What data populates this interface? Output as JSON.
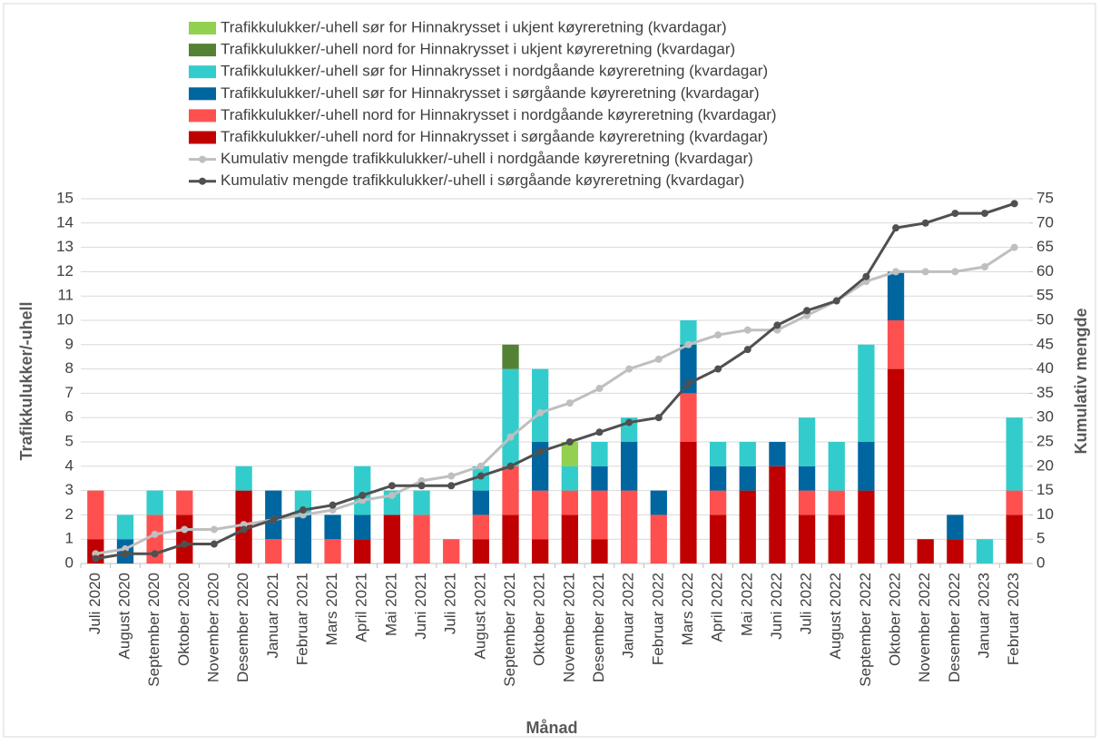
{
  "chart_data": {
    "type": "bar",
    "stacked": true,
    "x_label": "Månad",
    "y_label": "Trafikkulukker/-uhell",
    "y2_label": "Kumulativ mengde",
    "grid": true,
    "categories": [
      "Juli 2020",
      "August 2020",
      "September 2020",
      "Oktober 2020",
      "November 2020",
      "Desember 2020",
      "Januar 2021",
      "Februar 2021",
      "Mars 2021",
      "April 2021",
      "Mai 2021",
      "Juni 2021",
      "Juli 2021",
      "August 2021",
      "September 2021",
      "Oktober 2021",
      "November 2021",
      "Desember 2021",
      "Januar 2022",
      "Februar 2022",
      "Mars 2022",
      "April 2022",
      "Mai 2022",
      "Juni 2022",
      "Juli 2022",
      "August 2022",
      "September 2022",
      "Oktober 2022",
      "November 2022",
      "Desember 2022",
      "Januar 2023",
      "Februar 2023"
    ],
    "ylim": [
      0,
      15
    ],
    "yticks": [
      0,
      1,
      2,
      3,
      4,
      5,
      6,
      7,
      8,
      9,
      10,
      11,
      12,
      13,
      14,
      15
    ],
    "y2lim": [
      0,
      75
    ],
    "y2ticks": [
      0,
      5,
      10,
      15,
      20,
      25,
      30,
      35,
      40,
      45,
      50,
      55,
      60,
      65,
      70,
      75
    ],
    "series": [
      {
        "name": "Trafikkulukker/-uhell nord for Hinnakrysset i sørgåande køyreretning (kvardagar)",
        "color": "#c00000",
        "type": "bar",
        "values": [
          1,
          0,
          0,
          2,
          0,
          3,
          0,
          0,
          0,
          1,
          2,
          0,
          0,
          1,
          2,
          1,
          2,
          1,
          0,
          0,
          5,
          2,
          3,
          4,
          2,
          2,
          3,
          8,
          1,
          1,
          0,
          2
        ]
      },
      {
        "name": "Trafikkulukker/-uhell nord for Hinnakrysset i nordgåande køyreretning (kvardagar)",
        "color": "#ff5050",
        "type": "bar",
        "values": [
          2,
          0,
          2,
          1,
          0,
          0,
          1,
          0,
          1,
          0,
          0,
          2,
          1,
          1,
          2,
          2,
          1,
          2,
          3,
          2,
          2,
          1,
          0,
          0,
          1,
          1,
          0,
          2,
          0,
          0,
          0,
          1
        ]
      },
      {
        "name": "Trafikkulukker/-uhell sør for Hinnakrysset i sørgåande køyreretning (kvardagar)",
        "color": "#0066a0",
        "type": "bar",
        "values": [
          0,
          1,
          0,
          0,
          0,
          0,
          2,
          2,
          1,
          1,
          0,
          0,
          0,
          1,
          0,
          2,
          0,
          1,
          2,
          1,
          2,
          1,
          1,
          1,
          1,
          0,
          2,
          2,
          0,
          1,
          0,
          0
        ]
      },
      {
        "name": "Trafikkulukker/-uhell sør for Hinnakrysset i nordgåande køyreretning (kvardagar)",
        "color": "#33cccc",
        "type": "bar",
        "values": [
          0,
          1,
          1,
          0,
          0,
          1,
          0,
          1,
          0,
          2,
          1,
          1,
          0,
          1,
          4,
          3,
          1,
          1,
          1,
          0,
          1,
          1,
          1,
          0,
          2,
          2,
          4,
          0,
          0,
          0,
          1,
          3
        ]
      },
      {
        "name": "Trafikkulukker/-uhell nord for Hinnakrysset i ukjent køyreretning (kvardagar)",
        "color": "#548235",
        "type": "bar",
        "values": [
          0,
          0,
          0,
          0,
          0,
          0,
          0,
          0,
          0,
          0,
          0,
          0,
          0,
          0,
          1,
          0,
          0,
          0,
          0,
          0,
          0,
          0,
          0,
          0,
          0,
          0,
          0,
          0,
          0,
          0,
          0,
          0
        ]
      },
      {
        "name": "Trafikkulukker/-uhell sør for Hinnakrysset i ukjent køyreretning (kvardagar)",
        "color": "#92d050",
        "type": "bar",
        "values": [
          0,
          0,
          0,
          0,
          0,
          0,
          0,
          0,
          0,
          0,
          0,
          0,
          0,
          0,
          0,
          0,
          1,
          0,
          0,
          0,
          0,
          0,
          0,
          0,
          0,
          0,
          0,
          0,
          0,
          0,
          0,
          0
        ]
      },
      {
        "name": "Kumulativ mengde trafikkulukker/-uhell i nordgåande køyreretning (kvardagar)",
        "color": "#bfbfbf",
        "type": "line",
        "axis": "y2",
        "values": [
          2,
          3,
          6,
          7,
          7,
          8,
          9,
          10,
          11,
          13,
          14,
          17,
          18,
          20,
          26,
          31,
          33,
          36,
          40,
          42,
          45,
          47,
          48,
          48,
          51,
          54,
          58,
          60,
          60,
          60,
          61,
          65
        ]
      },
      {
        "name": "Kumulativ mengde trafikkulukker/-uhell i sørgåande køyreretning (kvardagar)",
        "color": "#505050",
        "type": "line",
        "axis": "y2",
        "values": [
          1,
          2,
          2,
          4,
          4,
          7,
          9,
          11,
          12,
          14,
          16,
          16,
          16,
          18,
          20,
          23,
          25,
          27,
          29,
          30,
          37,
          40,
          44,
          49,
          52,
          54,
          59,
          69,
          70,
          72,
          72,
          74
        ]
      }
    ]
  }
}
